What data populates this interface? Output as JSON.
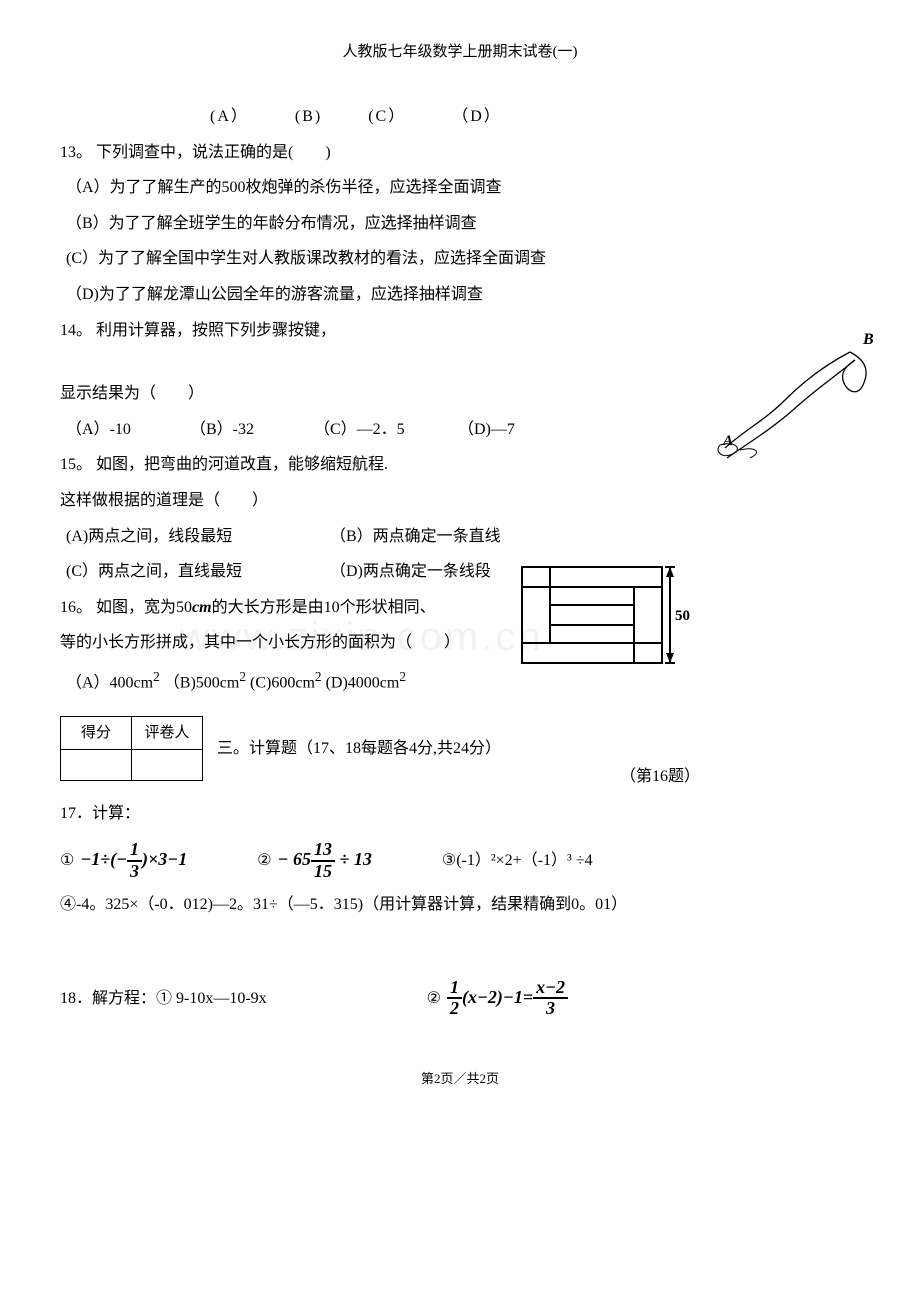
{
  "header": {
    "title": "人教版七年级数学上册期末试卷(一)"
  },
  "optionsRow": {
    "a": "(A）",
    "b": "(B)",
    "c": "(C）",
    "d": "（D）"
  },
  "q13": {
    "stem": "13。 下列调查中，说法正确的是(　　)",
    "a": "（A）为了了解生产的500枚炮弹的杀伤半径，应选择全面调查",
    "b": "（B）为了了解全班学生的年龄分布情况，应选择抽样调查",
    "c": "(C）为了了解全国中学生对人教版课改教材的看法，应选择全面调查",
    "d": "（D)为了了解龙潭山公园全年的游客流量，应选择抽样调查"
  },
  "q14": {
    "stem": "14。 利用计算器，按照下列步骤按键，",
    "result": "显示结果为（　　）",
    "a": "（A）-10",
    "b": "（B）-32",
    "c": "（C）—2．5",
    "d": "（D)—7"
  },
  "q15": {
    "stem": "15。 如图，把弯曲的河道改直，能够缩短航程.",
    "cont": "这样做根据的道理是（　　）",
    "a": "(A)两点之间，线段最短",
    "b": "（B）两点确定一条直线",
    "c": "(C）两点之间，直线最短",
    "d": "（D)两点确定一条线段"
  },
  "q16": {
    "line1_pre": "16。 如图，宽为50",
    "line1_unit": "cm",
    "line1_post": "的大长方形是由10个形状相同、",
    "line2": "等的小长方形拼成，其中一个小长方形的面积为（　　）",
    "a": "（A）400cm",
    "b": "（B)500cm",
    "c": "(C)600cm",
    "d": "(D)4000cm",
    "sup": "2",
    "caption": "（第16题）",
    "dim_label": "50"
  },
  "scoreTable": {
    "h1": "得分",
    "h2": "评卷人"
  },
  "section3": {
    "title": "三。计算题（17、18每题各4分,共24分）"
  },
  "q17": {
    "stem": "17．计算：",
    "f1_circ": "①",
    "f1_html": "−1÷(−<span class='frac'><span class='num'>1</span><span class='den'>3</span></span>)×3−1",
    "f2_circ": "②",
    "f2_html": "− 65<span class='frac'><span class='num'>13</span><span class='den'>15</span></span> ÷ 13",
    "f3": "③(-1）²×2+（-1）³ ÷4",
    "line4": "④-4。325×（-0．012)—2。31÷（—5．315)（用计算器计算，结果精确到0。01）"
  },
  "q18": {
    "stem": "18．解方程：① 9-10x—10-9x",
    "f2_circ": "②",
    "f2_html": "<span class='frac'><span class='num'>1</span><span class='den'>2</span></span>(x−2)−1=<span class='frac'><span class='num'>x−2</span><span class='den'>3</span></span>"
  },
  "river": {
    "A": "A",
    "B": "B"
  },
  "footer": {
    "text": "第2页／共2页"
  },
  "watermark": "www.zixin.com.cn"
}
